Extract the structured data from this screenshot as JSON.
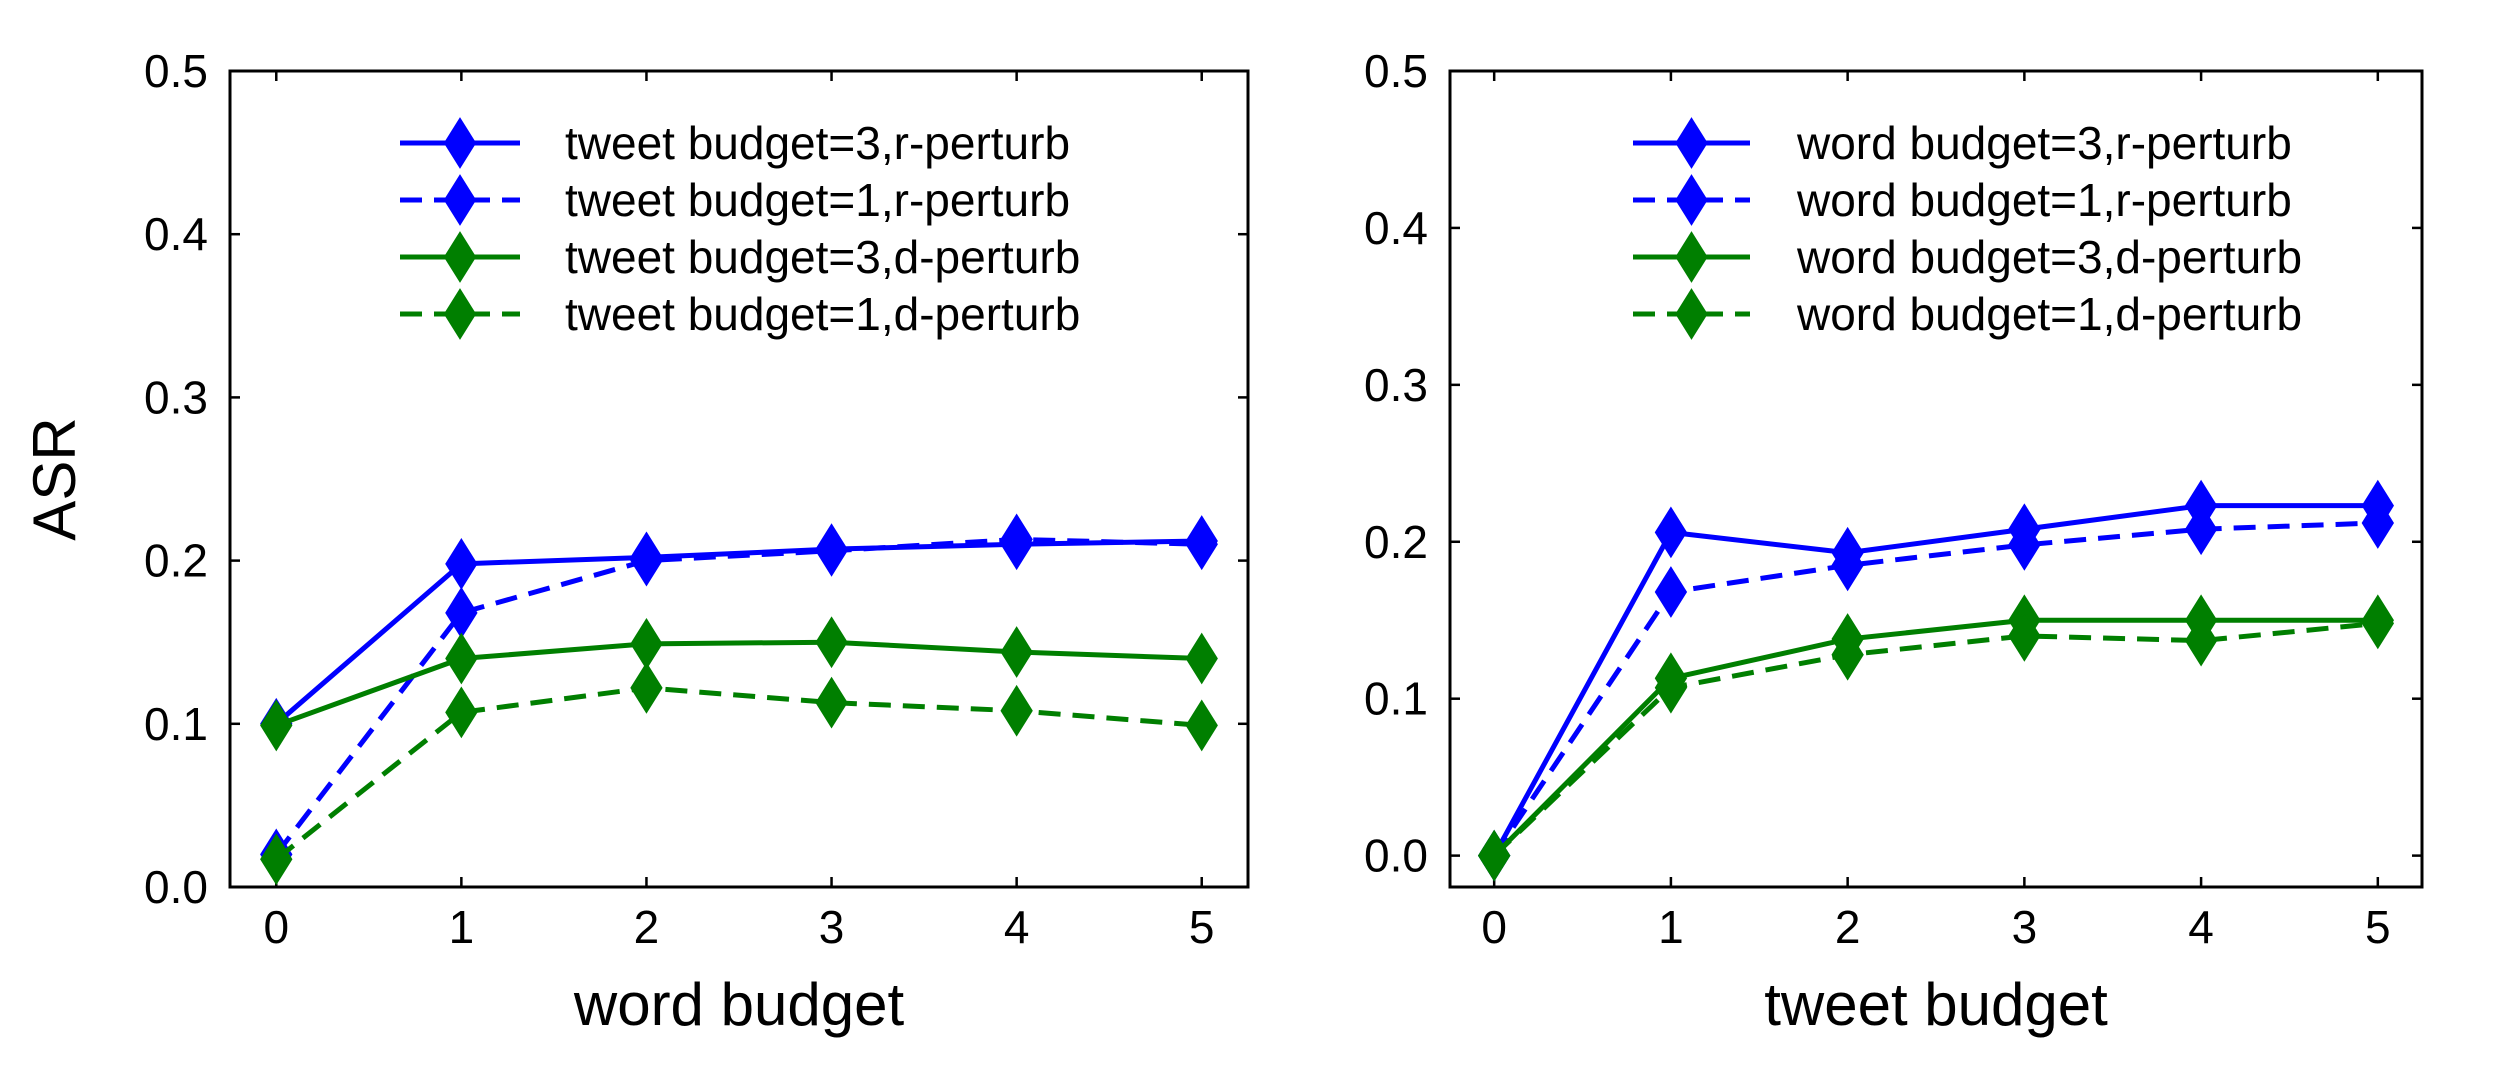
{
  "chart_data": [
    {
      "type": "line",
      "xlabel": "word budget",
      "ylabel": "ASR",
      "x": [
        0,
        1,
        2,
        3,
        4,
        5
      ],
      "xlim": [
        -0.25,
        5.25
      ],
      "ylim": [
        0.0,
        0.5
      ],
      "xticks": [
        "0",
        "1",
        "2",
        "3",
        "4",
        "5"
      ],
      "yticks": [
        "0.0",
        "0.1",
        "0.2",
        "0.3",
        "0.4",
        "0.5"
      ],
      "grid": false,
      "legend_position": "top-right",
      "series": [
        {
          "name": "tweet budget=3,r-perturb",
          "values": [
            0.1,
            0.198,
            0.202,
            0.207,
            0.21,
            0.212
          ],
          "color": "#0000ff",
          "dashed": false
        },
        {
          "name": "tweet budget=1,r-perturb",
          "values": [
            0.02,
            0.168,
            0.2,
            0.206,
            0.213,
            0.21
          ],
          "color": "#0000ff",
          "dashed": true
        },
        {
          "name": "tweet budget=3,d-perturb",
          "values": [
            0.099,
            0.14,
            0.149,
            0.15,
            0.144,
            0.14
          ],
          "color": "#007f00",
          "dashed": false
        },
        {
          "name": "tweet budget=1,d-perturb",
          "values": [
            0.017,
            0.107,
            0.122,
            0.113,
            0.108,
            0.099
          ],
          "color": "#007f00",
          "dashed": true
        }
      ]
    },
    {
      "type": "line",
      "xlabel": "tweet budget",
      "ylabel": "",
      "x": [
        0,
        1,
        2,
        3,
        4,
        5
      ],
      "xlim": [
        -0.25,
        5.25
      ],
      "ylim": [
        -0.02,
        0.5
      ],
      "xticks": [
        "0",
        "1",
        "2",
        "3",
        "4",
        "5"
      ],
      "yticks": [
        "0.0",
        "0.1",
        "0.2",
        "0.3",
        "0.4",
        "0.5"
      ],
      "grid": false,
      "legend_position": "top-right",
      "series": [
        {
          "name": "word budget=3,r-perturb",
          "values": [
            0.0,
            0.206,
            0.193,
            0.208,
            0.223,
            0.223
          ],
          "color": "#0000ff",
          "dashed": false
        },
        {
          "name": "word budget=1,r-perturb",
          "values": [
            0.0,
            0.168,
            0.185,
            0.198,
            0.208,
            0.212
          ],
          "color": "#0000ff",
          "dashed": true
        },
        {
          "name": "word budget=3,d-perturb",
          "values": [
            0.0,
            0.113,
            0.138,
            0.15,
            0.15,
            0.15
          ],
          "color": "#007f00",
          "dashed": false
        },
        {
          "name": "word budget=1,d-perturb",
          "values": [
            0.0,
            0.107,
            0.128,
            0.14,
            0.137,
            0.148
          ],
          "color": "#007f00",
          "dashed": true
        }
      ]
    }
  ]
}
